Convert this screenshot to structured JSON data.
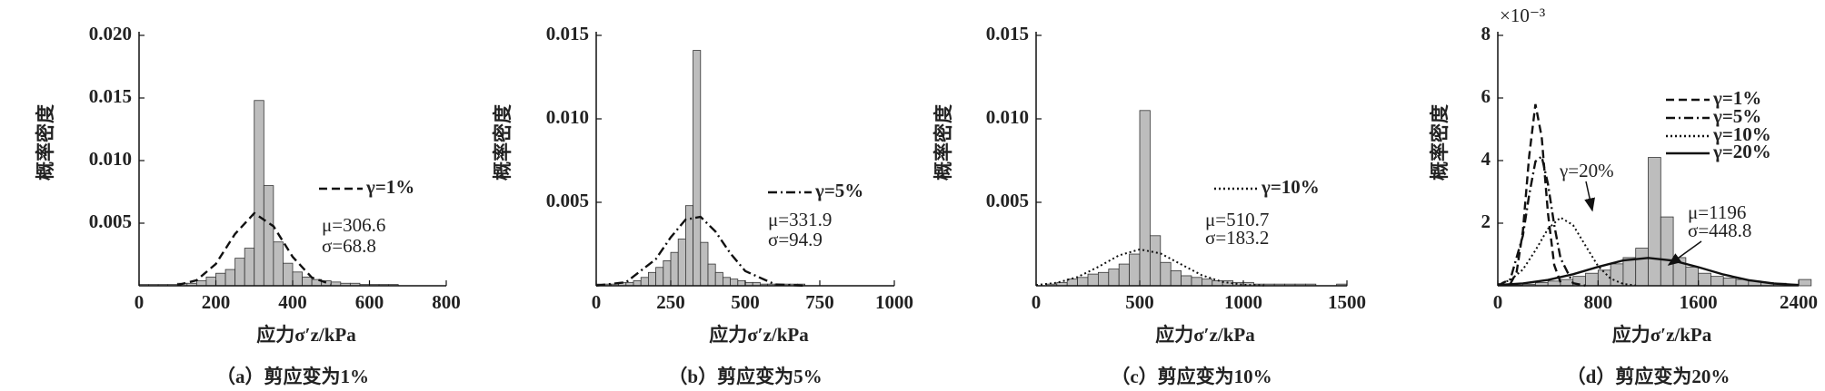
{
  "chart_data": [
    {
      "type": "histogram",
      "caption": "（a）剪应变为1%",
      "xlabel": "应力σ′z/kPa",
      "ylabel": "概率密度",
      "xlim": [
        0,
        800
      ],
      "ylim": [
        0,
        0.02
      ],
      "xticks": [
        0,
        200,
        400,
        600,
        800
      ],
      "yticks": [
        0.005,
        {
          "value": 0.01,
          "label": "0.010"
        },
        0.015,
        {
          "value": 0.02,
          "label": "0.020"
        }
      ],
      "bins": [
        0,
        25,
        50,
        75,
        100,
        125,
        150,
        175,
        200,
        225,
        250,
        275,
        300,
        325,
        350,
        375,
        400,
        425,
        450,
        475,
        500,
        525,
        550,
        575,
        600,
        625,
        650,
        675
      ],
      "counts": [
        0.0001,
        0.0001,
        0.0001,
        0.0001,
        0.0002,
        0.0002,
        0.0004,
        0.0007,
        0.001,
        0.0013,
        0.0022,
        0.003,
        0.0148,
        0.008,
        0.0035,
        0.0018,
        0.0011,
        0.0007,
        0.0005,
        0.0004,
        0.0003,
        0.0002,
        0.0002,
        0.0001,
        0.0001,
        0.0001,
        0.0001
      ],
      "curves": [
        {
          "name": "γ=1%",
          "dash": "dashed",
          "color": "#111",
          "x": [
            100,
            150,
            200,
            250,
            300,
            350,
            400,
            450,
            500
          ],
          "values": [
            6e-05,
            0.00044,
            0.00175,
            0.00414,
            0.0058,
            0.00475,
            0.00231,
            0.00066,
            0.00011
          ]
        }
      ],
      "annotations": [
        "μ=306.6",
        "σ=68.8"
      ]
    },
    {
      "type": "histogram",
      "caption": "（b）剪应变为5%",
      "xlabel": "应力σ′z/kPa",
      "ylabel": "概率密度",
      "xlim": [
        0,
        1000
      ],
      "ylim": [
        0,
        0.015
      ],
      "xticks": [
        0,
        250,
        500,
        750,
        1000
      ],
      "yticks": [
        0.005,
        {
          "value": 0.01,
          "label": "0.010"
        },
        0.015
      ],
      "bins": [
        0,
        25,
        50,
        75,
        100,
        125,
        150,
        175,
        200,
        225,
        250,
        275,
        300,
        325,
        350,
        375,
        400,
        425,
        450,
        475,
        500,
        525,
        550,
        575,
        600,
        625,
        650,
        675,
        700
      ],
      "counts": [
        0.0001,
        0.0001,
        0.0001,
        0.0002,
        0.0002,
        0.0003,
        0.0005,
        0.0008,
        0.0011,
        0.0015,
        0.002,
        0.0028,
        0.0048,
        0.0141,
        0.0026,
        0.0013,
        0.0008,
        0.0005,
        0.0004,
        0.0003,
        0.0002,
        0.0002,
        0.0001,
        0.0001,
        0.0001,
        0.0001,
        0.0001,
        0.0001
      ],
      "curves": [
        {
          "name": "γ=5%",
          "dash": "dashdot",
          "color": "#111",
          "x": [
            0,
            100,
            200,
            250,
            300,
            350,
            400,
            450,
            500,
            600,
            700
          ],
          "values": [
            1e-05,
            0.00021,
            0.0016,
            0.0029,
            0.00397,
            0.00413,
            0.00325,
            0.00194,
            0.00088,
            8e-05,
            2e-06
          ]
        }
      ],
      "annotations": [
        "μ=331.9",
        "σ=94.9"
      ]
    },
    {
      "type": "histogram",
      "caption": "（c）剪应变为10%",
      "xlabel": "应力σ′z/kPa",
      "ylabel": "概率密度",
      "xlim": [
        0,
        1500
      ],
      "ylim": [
        0,
        0.015
      ],
      "xticks": [
        0,
        500,
        1000,
        1500
      ],
      "yticks": [
        0.005,
        {
          "value": 0.01,
          "label": "0.010"
        },
        0.015
      ],
      "bins": [
        0,
        50,
        100,
        150,
        200,
        250,
        300,
        350,
        400,
        450,
        500,
        550,
        600,
        650,
        700,
        750,
        800,
        850,
        900,
        950,
        1000,
        1050,
        1100,
        1150,
        1200,
        1250,
        1300,
        1350,
        1400,
        1450,
        1500
      ],
      "counts": [
        0,
        0.0001,
        0.0002,
        0.0004,
        0.0005,
        0.0007,
        0.0008,
        0.001,
        0.0013,
        0.0019,
        0.0105,
        0.003,
        0.0014,
        0.0009,
        0.0006,
        0.0005,
        0.0004,
        0.0003,
        0.0003,
        0.0002,
        0.0002,
        0.0001,
        0.0001,
        0.0001,
        0.0001,
        0.0001,
        0.0001,
        0,
        0,
        0.0001
      ],
      "curves": [
        {
          "name": "γ=10%",
          "dash": "dotted",
          "color": "#111",
          "x": [
            0,
            100,
            200,
            300,
            400,
            500,
            600,
            700,
            800,
            900,
            1000,
            1100
          ],
          "values": [
            4.5e-05,
            0.00018,
            0.00052,
            0.00113,
            0.00182,
            0.00218,
            0.00194,
            0.00128,
            0.00063,
            0.00023,
            6e-05,
            1.2e-05
          ]
        }
      ],
      "annotations": [
        "μ=510.7",
        "σ=183.2"
      ]
    },
    {
      "type": "histogram",
      "caption": "（d）剪应变为20%",
      "xlabel": "应力σ′z/kPa",
      "ylabel": "概率密度",
      "y_multiplier": "×10⁻³",
      "xlim": [
        0,
        2400
      ],
      "ylim": [
        0,
        8
      ],
      "xticks": [
        0,
        800,
        1600,
        2400
      ],
      "yticks": [
        2,
        4,
        6,
        8
      ],
      "bins": [
        0,
        100,
        200,
        300,
        400,
        500,
        600,
        700,
        800,
        900,
        1000,
        1100,
        1200,
        1300,
        1400,
        1500,
        1600,
        1700,
        1800,
        1900,
        2000,
        2100,
        2200,
        2300,
        2400,
        2500
      ],
      "counts": [
        0,
        0.02,
        0.05,
        0.1,
        0.15,
        0.2,
        0.3,
        0.4,
        0.5,
        0.7,
        0.9,
        1.2,
        4.1,
        2.2,
        0.9,
        0.6,
        0.4,
        0.3,
        0.25,
        0.2,
        0.15,
        0.1,
        0.08,
        0.05,
        0.2
      ],
      "curves": [
        {
          "name": "γ=1%",
          "dash": "dashed",
          "color": "#111",
          "x": [
            100,
            150,
            200,
            250,
            300,
            350,
            400,
            450,
            500
          ],
          "values": [
            0.06,
            0.44,
            1.75,
            4.14,
            5.8,
            4.75,
            2.31,
            0.66,
            0.11
          ]
        },
        {
          "name": "γ=5%",
          "dash": "dashdot",
          "color": "#111",
          "x": [
            0,
            100,
            200,
            250,
            300,
            350,
            400,
            450,
            500,
            600,
            700
          ],
          "values": [
            0.01,
            0.21,
            1.6,
            2.9,
            3.97,
            4.13,
            3.25,
            1.94,
            0.88,
            0.08,
            0.002
          ]
        },
        {
          "name": "γ=10%",
          "dash": "dotted",
          "color": "#111",
          "x": [
            0,
            100,
            200,
            300,
            400,
            500,
            600,
            700,
            800,
            900,
            1000,
            1100
          ],
          "values": [
            0.045,
            0.18,
            0.52,
            1.13,
            1.82,
            2.18,
            1.94,
            1.28,
            0.63,
            0.23,
            0.06,
            0.012
          ]
        },
        {
          "name": "γ=20%",
          "dash": "solid",
          "color": "#111",
          "x": [
            0,
            200,
            400,
            600,
            800,
            1000,
            1200,
            1400,
            1600,
            1800,
            2000,
            2200,
            2400
          ],
          "values": [
            0.026,
            0.076,
            0.185,
            0.368,
            0.603,
            0.808,
            0.889,
            0.802,
            0.593,
            0.359,
            0.18,
            0.073,
            0.024
          ]
        }
      ],
      "annotations": [
        "γ=20%",
        "μ=1196",
        "σ=448.8"
      ]
    }
  ]
}
